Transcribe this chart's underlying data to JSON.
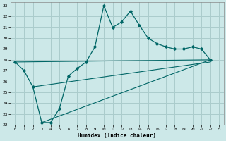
{
  "title": "",
  "xlabel": "Humidex (Indice chaleur)",
  "bg_color": "#cce8e8",
  "grid_color": "#aacccc",
  "line_color": "#006666",
  "xlim": [
    -0.5,
    23.5
  ],
  "ylim": [
    22,
    33.3
  ],
  "xticks": [
    0,
    1,
    2,
    3,
    4,
    5,
    6,
    7,
    8,
    9,
    10,
    11,
    12,
    13,
    14,
    15,
    16,
    17,
    18,
    19,
    20,
    21,
    22,
    23
  ],
  "yticks": [
    22,
    23,
    24,
    25,
    26,
    27,
    28,
    29,
    30,
    31,
    32,
    33
  ],
  "curve1_x": [
    0,
    1,
    2,
    3,
    4,
    5,
    6,
    7,
    8,
    9,
    10,
    11,
    12,
    13,
    14,
    15,
    16,
    17,
    18,
    19,
    20,
    21,
    22
  ],
  "curve1_y": [
    27.8,
    27.0,
    25.5,
    22.2,
    22.2,
    23.5,
    26.5,
    27.2,
    27.8,
    29.2,
    33.0,
    31.0,
    31.5,
    32.5,
    31.2,
    30.0,
    29.5,
    29.2,
    29.0,
    29.0,
    29.2,
    29.0,
    28.0
  ],
  "curve2_x": [
    0,
    22
  ],
  "curve2_y": [
    27.8,
    28.0
  ],
  "curve3_x": [
    2,
    22
  ],
  "curve3_y": [
    25.5,
    27.8
  ],
  "curve4_x": [
    3,
    22
  ],
  "curve4_y": [
    22.2,
    28.0
  ]
}
